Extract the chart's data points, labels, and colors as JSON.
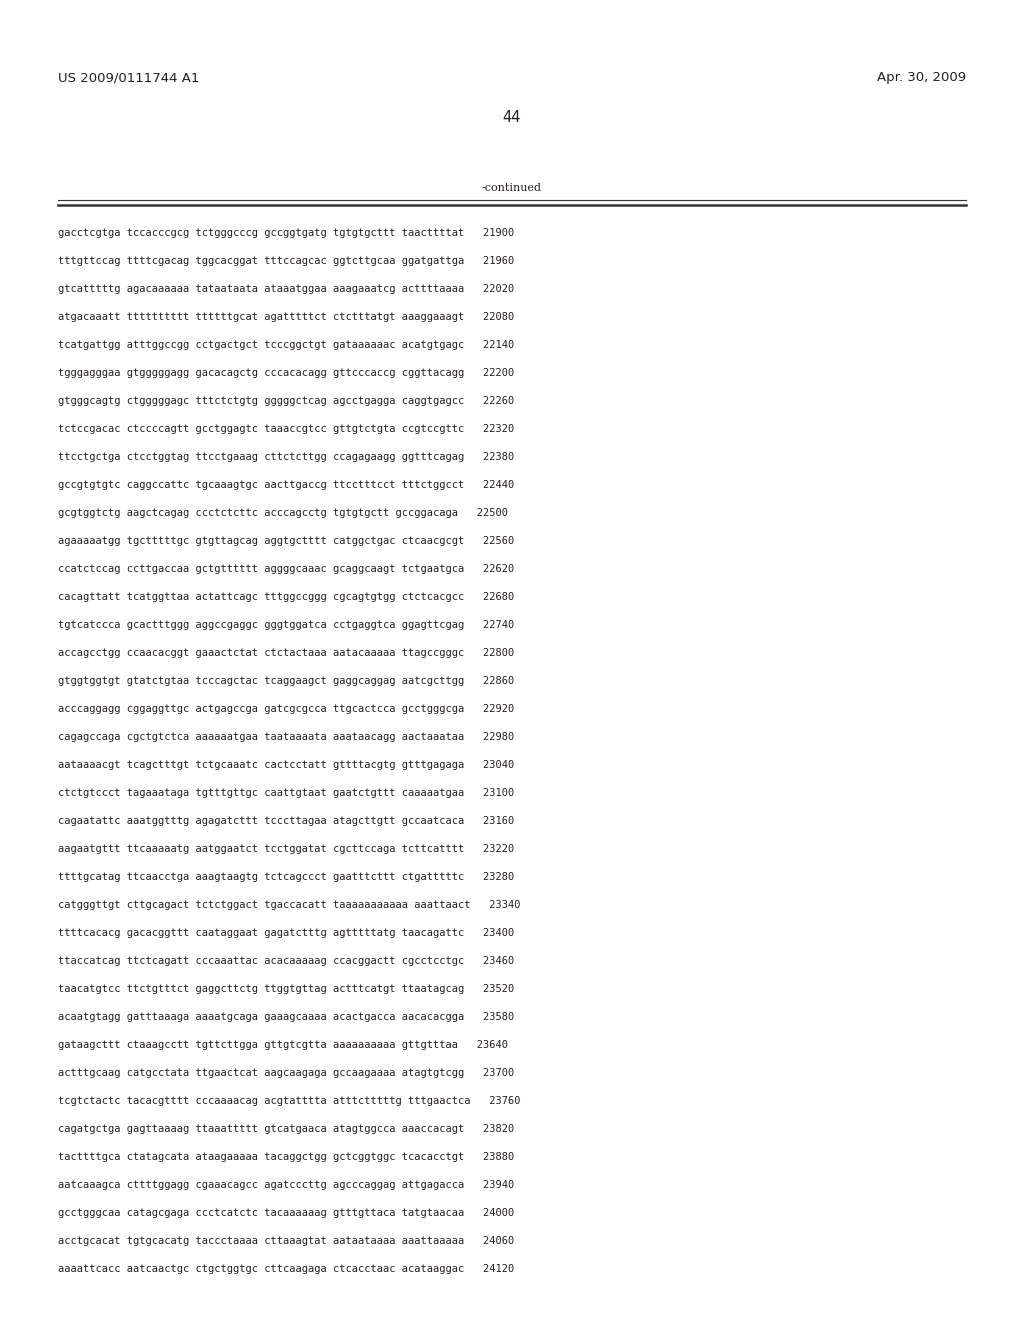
{
  "patent_number": "US 2009/0111744 A1",
  "date": "Apr. 30, 2009",
  "page_number": "44",
  "continued_label": "-continued",
  "background_color": "#ffffff",
  "text_color": "#231f20",
  "font_size": 7.5,
  "header_font_size": 9.5,
  "lines": [
    "gacctcgtga tccacccgcg tctgggcccg gccggtgatg tgtgtgcttt taacttttat   21900",
    "tttgttccag ttttcgacag tggcacggat tttccagcac ggtcttgcaa ggatgattga   21960",
    "gtcatttttg agacaaaaaa tataataata ataaatggaa aaagaaatcg acttttaaaa   22020",
    "atgacaaatt tttttttttt ttttttgcat agatttttct ctctttatgt aaaggaaagt   22080",
    "tcatgattgg atttggccgg cctgactgct tcccggctgt gataaaaaac acatgtgagc   22140",
    "tgggagggaa gtgggggagg gacacagctg cccacacagg gttcccaccg cggttacagg   22200",
    "gtgggcagtg ctgggggagc tttctctgtg gggggctcag agcctgagga caggtgagcc   22260",
    "tctccgacac ctccccagtt gcctggagtc taaaccgtcc gttgtctgta ccgtccgttc   22320",
    "ttcctgctga ctcctggtag ttcctgaaag cttctcttgg ccagagaagg ggtttcagag   22380",
    "gccgtgtgtc caggccattc tgcaaagtgc aacttgaccg ttcctttcct tttctggcct   22440",
    "gcgtggtctg aagctcagag ccctctcttc acccagcctg tgtgtgctt gccggacaga   22500",
    "agaaaaatgg tgctttttgc gtgttagcag aggtgctttt catggctgac ctcaacgcgt   22560",
    "ccatctccag ccttgaccaa gctgtttttt aggggcaaac gcaggcaagt tctgaatgca   22620",
    "cacagttatt tcatggttaa actattcagc tttggccggg cgcagtgtgg ctctcacgcc   22680",
    "tgtcatccca gcactttggg aggccgaggc gggtggatca cctgaggtca ggagttcgag   22740",
    "accagcctgg ccaacacggt gaaactctat ctctactaaa aatacaaaaa ttagccgggc   22800",
    "gtggtggtgt gtatctgtaa tcccagctac tcaggaagct gaggcaggag aatcgcttgg   22860",
    "acccaggagg cggaggttgc actgagccga gatcgcgcca ttgcactcca gcctgggcga   22920",
    "cagagccaga cgctgtctca aaaaaatgaa taataaaata aaataacagg aactaaataa   22980",
    "aataaaacgt tcagctttgt tctgcaaatc cactcctatt gttttacgtg gtttgagaga   23040",
    "ctctgtccct tagaaataga tgtttgttgc caattgtaat gaatctgttt caaaaatgaa   23100",
    "cagaatattc aaatggtttg agagatcttt tcccttagaa atagcttgtt gccaatcaca   23160",
    "aagaatgttt ttcaaaaatg aatggaatct tcctggatat cgcttccaga tcttcatttt   23220",
    "ttttgcatag ttcaacctga aaagtaagtg tctcagccct gaatttcttt ctgatttttc   23280",
    "catgggttgt cttgcagact tctctggact tgaccacatt taaaaaaaaaaa aaattaact   23340",
    "ttttcacacg gacacggttt caataggaat gagatctttg agtttttatg taacagattc   23400",
    "ttaccatcag ttctcagatt cccaaattac acacaaaaag ccacggactt cgcctcctgc   23460",
    "taacatgtcc ttctgtttct gaggcttctg ttggtgttag actttcatgt ttaatagcag   23520",
    "acaatgtagg gatttaaaga aaaatgcaga gaaagcaaaa acactgacca aacacacgga   23580",
    "gataagcttt ctaaagcctt tgttcttgga gttgtcgtta aaaaaaaaaa gttgtttaa   23640",
    "actttgcaag catgcctata ttgaactcat aagcaagaga gccaagaaaa atagtgtcgg   23700",
    "tcgtctactc tacacgtttt cccaaaacag acgtatttta atttctttttg tttgaactca   23760",
    "cagatgctga gagttaaaag ttaaattttt gtcatgaaca atagtggcca aaaccacagt   23820",
    "tacttttgca ctatagcata ataagaaaaa tacaggctgg gctcggtggc tcacacctgt   23880",
    "aatcaaagca cttttggagg cgaaacagcc agatcccttg agcccaggag attgagacca   23940",
    "gcctgggcaa catagcgaga ccctcatctc tacaaaaaag gtttgttaca tatgtaacaa   24000",
    "acctgcacat tgtgcacatg taccctaaaa cttaaagtat aataataaaa aaattaaaaa   24060",
    "aaaattcacc aatcaactgc ctgctggtgc cttcaagaga ctcacctaac acataaggac   24120"
  ]
}
